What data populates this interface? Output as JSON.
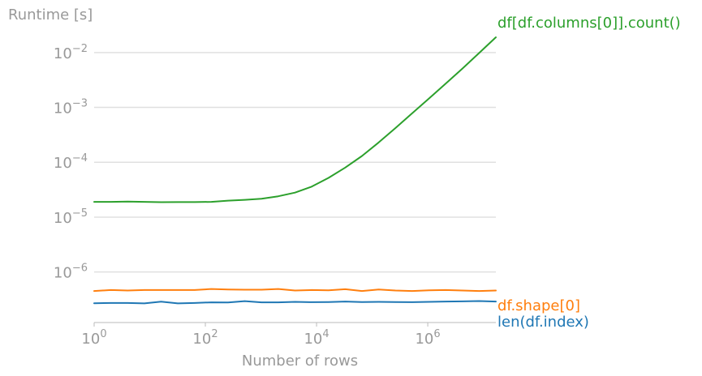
{
  "chart_data": {
    "type": "line",
    "title": "",
    "xlabel": "Number of rows",
    "ylabel": "Runtime [s]",
    "xscale": "log",
    "yscale": "log",
    "xlim": [
      1,
      16777216
    ],
    "ylim": [
      1.2e-07,
      0.035
    ],
    "grid": "horizontal",
    "legend": "labels at line ends",
    "x_ticks": [
      {
        "value": 1,
        "base": "10",
        "exp": "0"
      },
      {
        "value": 100,
        "base": "10",
        "exp": "2"
      },
      {
        "value": 10000,
        "base": "10",
        "exp": "4"
      },
      {
        "value": 1000000,
        "base": "10",
        "exp": "6"
      }
    ],
    "y_ticks": [
      {
        "value": 1e-06,
        "base": "10",
        "exp": "−6"
      },
      {
        "value": 1e-05,
        "base": "10",
        "exp": "−5"
      },
      {
        "value": 0.0001,
        "base": "10",
        "exp": "−4"
      },
      {
        "value": 0.001,
        "base": "10",
        "exp": "−3"
      },
      {
        "value": 0.01,
        "base": "10",
        "exp": "−2"
      }
    ],
    "x": [
      1,
      2,
      4,
      8,
      16,
      32,
      64,
      128,
      256,
      512,
      1024,
      2048,
      4096,
      8192,
      16384,
      32768,
      65536,
      131072,
      262144,
      524288,
      1048576,
      2097152,
      4194304,
      8388608,
      16777216
    ],
    "series": [
      {
        "name": "df[df.columns[0]].count()",
        "color": "#2ca02c",
        "values": [
          1.9e-05,
          1.9e-05,
          1.92e-05,
          1.9e-05,
          1.87e-05,
          1.88e-05,
          1.88e-05,
          1.9e-05,
          2e-05,
          2.07e-05,
          2.17e-05,
          2.4e-05,
          2.8e-05,
          3.6e-05,
          5.2e-05,
          8e-05,
          0.00013,
          0.00023,
          0.00042,
          0.00078,
          0.00145,
          0.0027,
          0.0051,
          0.0098,
          0.019
        ]
      },
      {
        "name": "df.shape[0]",
        "color": "#ff7f0e",
        "values": [
          4.5e-07,
          4.7e-07,
          4.6e-07,
          4.7e-07,
          4.7e-07,
          4.7e-07,
          4.7e-07,
          4.9e-07,
          4.8e-07,
          4.75e-07,
          4.75e-07,
          4.9e-07,
          4.6e-07,
          4.7e-07,
          4.65e-07,
          4.85e-07,
          4.5e-07,
          4.8e-07,
          4.6e-07,
          4.5e-07,
          4.65e-07,
          4.7e-07,
          4.6e-07,
          4.5e-07,
          4.6e-07
        ]
      },
      {
        "name": "len(df.index)",
        "color": "#1f77b4",
        "values": [
          2.7e-07,
          2.72e-07,
          2.72e-07,
          2.68e-07,
          2.88e-07,
          2.68e-07,
          2.72e-07,
          2.8e-07,
          2.78e-07,
          2.95e-07,
          2.8e-07,
          2.8e-07,
          2.86e-07,
          2.82e-07,
          2.84e-07,
          2.9e-07,
          2.84e-07,
          2.86e-07,
          2.84e-07,
          2.82e-07,
          2.86e-07,
          2.9e-07,
          2.92e-07,
          2.96e-07,
          2.9e-07
        ]
      }
    ]
  }
}
